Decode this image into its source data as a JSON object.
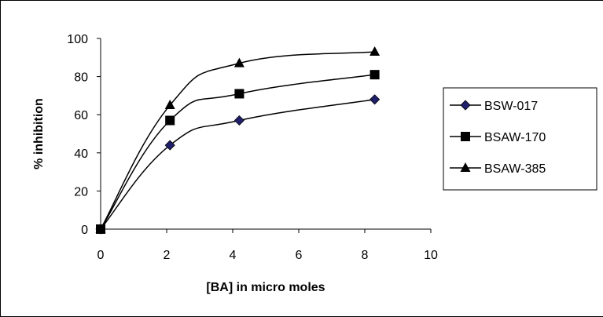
{
  "chart_data": {
    "type": "line",
    "title": "",
    "xlabel": "[BA] in micro moles",
    "ylabel": "% inhibition",
    "xlim": [
      0,
      10
    ],
    "ylim": [
      0,
      100
    ],
    "xticks": [
      0,
      2,
      4,
      6,
      8,
      10
    ],
    "yticks": [
      0,
      20,
      40,
      60,
      80,
      100
    ],
    "grid": false,
    "legend_position": "right",
    "x": [
      0,
      2.1,
      4.2,
      8.3
    ],
    "series": [
      {
        "name": "BSW-017",
        "marker": "diamond",
        "color": "#1f1f6b",
        "values": [
          0,
          44,
          57,
          68
        ]
      },
      {
        "name": "BSAW-170",
        "marker": "square",
        "color": "#000000",
        "values": [
          0,
          57,
          71,
          81
        ]
      },
      {
        "name": "BSAW-385",
        "marker": "triangle",
        "color": "#000000",
        "values": [
          0,
          65,
          87,
          93
        ]
      }
    ]
  }
}
